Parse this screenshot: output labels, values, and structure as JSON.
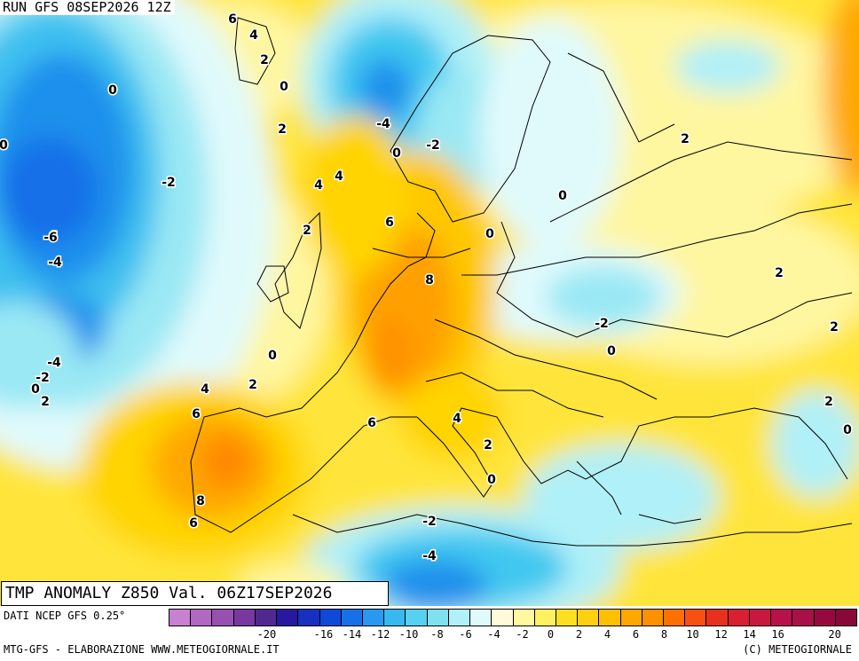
{
  "header": {
    "run": "RUN GFS 08SEP2026 12Z"
  },
  "map_title": "TMP ANOMALY Z850 Val. 06Z17SEP2026",
  "footer": {
    "data_source": "DATI NCEP GFS 0.25°",
    "credits_left": "MTG-GFS - ELABORAZIONE WWW.METEOGIORNALE.IT",
    "credits_right": "(C) METEOGIORNALE"
  },
  "colorbar": {
    "colors": [
      "#c880d0",
      "#b068c0",
      "#9850b0",
      "#7838a0",
      "#502890",
      "#2818a0",
      "#1830c0",
      "#1048d8",
      "#1870e8",
      "#2898f0",
      "#38b8f0",
      "#58d0f0",
      "#80e0f0",
      "#b0f0f8",
      "#e0fafc",
      "#fffbd8",
      "#fff8a0",
      "#fff060",
      "#ffe020",
      "#ffd010",
      "#ffc000",
      "#ffa800",
      "#ff9000",
      "#ff7000",
      "#f85010",
      "#e83020",
      "#d82030",
      "#c81840",
      "#b81048",
      "#a81048",
      "#980840",
      "#880838"
    ],
    "ticks": [
      "-20",
      "-16",
      "-14",
      "-12",
      "-10",
      "-8",
      "-6",
      "-4",
      "-2",
      "0",
      "2",
      "4",
      "6",
      "8",
      "10",
      "12",
      "14",
      "16",
      "20"
    ]
  },
  "map": {
    "contour_labels": [
      {
        "text": "6"
      },
      {
        "text": "4"
      },
      {
        "text": "2"
      },
      {
        "text": "0"
      },
      {
        "text": "0"
      },
      {
        "text": "0"
      },
      {
        "text": "-4"
      },
      {
        "text": "2"
      },
      {
        "text": "0"
      },
      {
        "text": "-2"
      },
      {
        "text": "2"
      },
      {
        "text": "6"
      },
      {
        "text": "-2"
      },
      {
        "text": "4"
      },
      {
        "text": "4"
      },
      {
        "text": "0"
      },
      {
        "text": "6"
      },
      {
        "text": "2"
      },
      {
        "text": "-6"
      },
      {
        "text": "0"
      },
      {
        "text": "-4"
      },
      {
        "text": "8"
      },
      {
        "text": "2"
      },
      {
        "text": "-2"
      },
      {
        "text": "2"
      },
      {
        "text": "0"
      },
      {
        "text": "0"
      },
      {
        "text": "-4"
      },
      {
        "text": "-2"
      },
      {
        "text": "0"
      },
      {
        "text": "2"
      },
      {
        "text": "4"
      },
      {
        "text": "2"
      },
      {
        "text": "6"
      },
      {
        "text": "2"
      },
      {
        "text": "6"
      },
      {
        "text": "4"
      },
      {
        "text": "0"
      },
      {
        "text": "2"
      },
      {
        "text": "0"
      },
      {
        "text": "8"
      },
      {
        "text": "6"
      },
      {
        "text": "-2"
      },
      {
        "text": "-4"
      }
    ]
  }
}
